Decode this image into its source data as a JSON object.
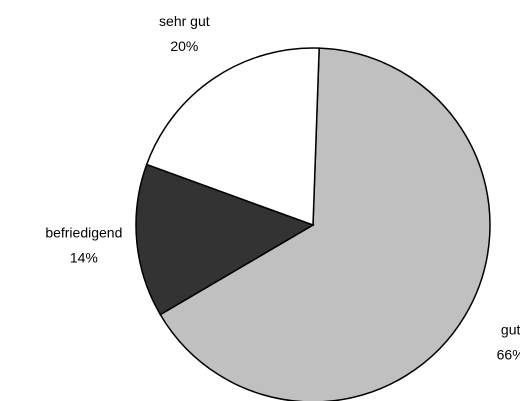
{
  "chart_data": {
    "type": "pie",
    "categories": [
      "gut",
      "befriedigend",
      "sehr gut"
    ],
    "values": [
      66,
      14,
      20
    ],
    "value_labels": [
      "66%",
      "14%",
      "20%"
    ],
    "colors": [
      "#c0c0c0",
      "#333333",
      "#ffffff"
    ]
  }
}
